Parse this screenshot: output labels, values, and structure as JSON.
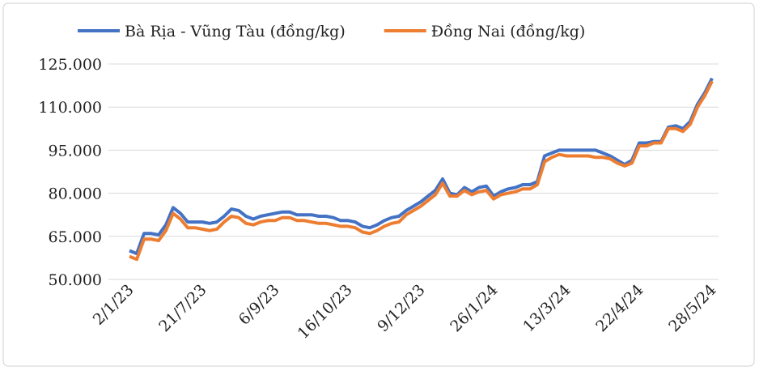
{
  "chart_data": {
    "type": "line",
    "categories": [
      "2/1/23",
      null,
      null,
      null,
      null,
      null,
      null,
      null,
      null,
      null,
      "21/7/23",
      null,
      null,
      null,
      null,
      null,
      null,
      null,
      null,
      null,
      "6/9/23",
      null,
      null,
      null,
      null,
      null,
      null,
      null,
      null,
      null,
      "16/10/23",
      null,
      null,
      null,
      null,
      null,
      null,
      null,
      null,
      null,
      "9/12/23",
      null,
      null,
      null,
      null,
      null,
      null,
      null,
      null,
      null,
      "26/1/24",
      null,
      null,
      null,
      null,
      null,
      null,
      null,
      null,
      null,
      "13/3/24",
      null,
      null,
      null,
      null,
      null,
      null,
      null,
      null,
      null,
      "22/4/24",
      null,
      null,
      null,
      null,
      null,
      null,
      null,
      null,
      null,
      "28/5/24"
    ],
    "series": [
      {
        "name": "Bà Rịa - Vũng Tàu (đồng/kg)",
        "color": "#4472c4",
        "values": [
          60000,
          59000,
          66000,
          66000,
          65500,
          69000,
          75000,
          73000,
          70000,
          70000,
          70000,
          69500,
          70000,
          72000,
          74500,
          74000,
          72000,
          71000,
          72000,
          72500,
          73000,
          73500,
          73500,
          72500,
          72500,
          72500,
          72000,
          72000,
          71500,
          70500,
          70500,
          70000,
          68500,
          68000,
          69000,
          70500,
          71500,
          72000,
          74000,
          75500,
          77000,
          79000,
          81000,
          85000,
          80000,
          79500,
          82000,
          80500,
          82000,
          82500,
          79000,
          80500,
          81500,
          82000,
          83000,
          83000,
          84000,
          93000,
          94000,
          95000,
          95000,
          95000,
          95000,
          95000,
          95000,
          94000,
          93000,
          91500,
          90000,
          91500,
          97500,
          97500,
          98000,
          98000,
          103000,
          103500,
          102500,
          105000,
          111000,
          115000,
          120000
        ]
      },
      {
        "name": "Đồng Nai (đồng/kg)",
        "color": "#ed7d31",
        "values": [
          58000,
          57000,
          64000,
          64000,
          63500,
          67000,
          73000,
          71000,
          68000,
          68000,
          67500,
          67000,
          67500,
          70000,
          72000,
          71500,
          69500,
          69000,
          70000,
          70500,
          70500,
          71500,
          71500,
          70500,
          70500,
          70000,
          69500,
          69500,
          69000,
          68500,
          68500,
          68000,
          66500,
          66000,
          67000,
          68500,
          69500,
          70000,
          72500,
          74000,
          75500,
          77500,
          79500,
          83500,
          79000,
          79000,
          81000,
          79500,
          80500,
          81000,
          78000,
          79500,
          80000,
          80500,
          81500,
          81500,
          83000,
          91000,
          92500,
          93500,
          93000,
          93000,
          93000,
          93000,
          92500,
          92500,
          92000,
          90500,
          89500,
          90500,
          96500,
          96500,
          97500,
          97500,
          102500,
          102500,
          101500,
          104000,
          110000,
          114000,
          119000
        ]
      }
    ],
    "ylim": [
      50000,
      125000
    ],
    "yticks": [
      {
        "value": 50000,
        "label": "50.000"
      },
      {
        "value": 65000,
        "label": "65.000"
      },
      {
        "value": 80000,
        "label": "80.000"
      },
      {
        "value": 95000,
        "label": "95.000"
      },
      {
        "value": 110000,
        "label": "110.000"
      },
      {
        "value": 125000,
        "label": "125.000"
      }
    ],
    "grid": true,
    "legend": "top"
  }
}
